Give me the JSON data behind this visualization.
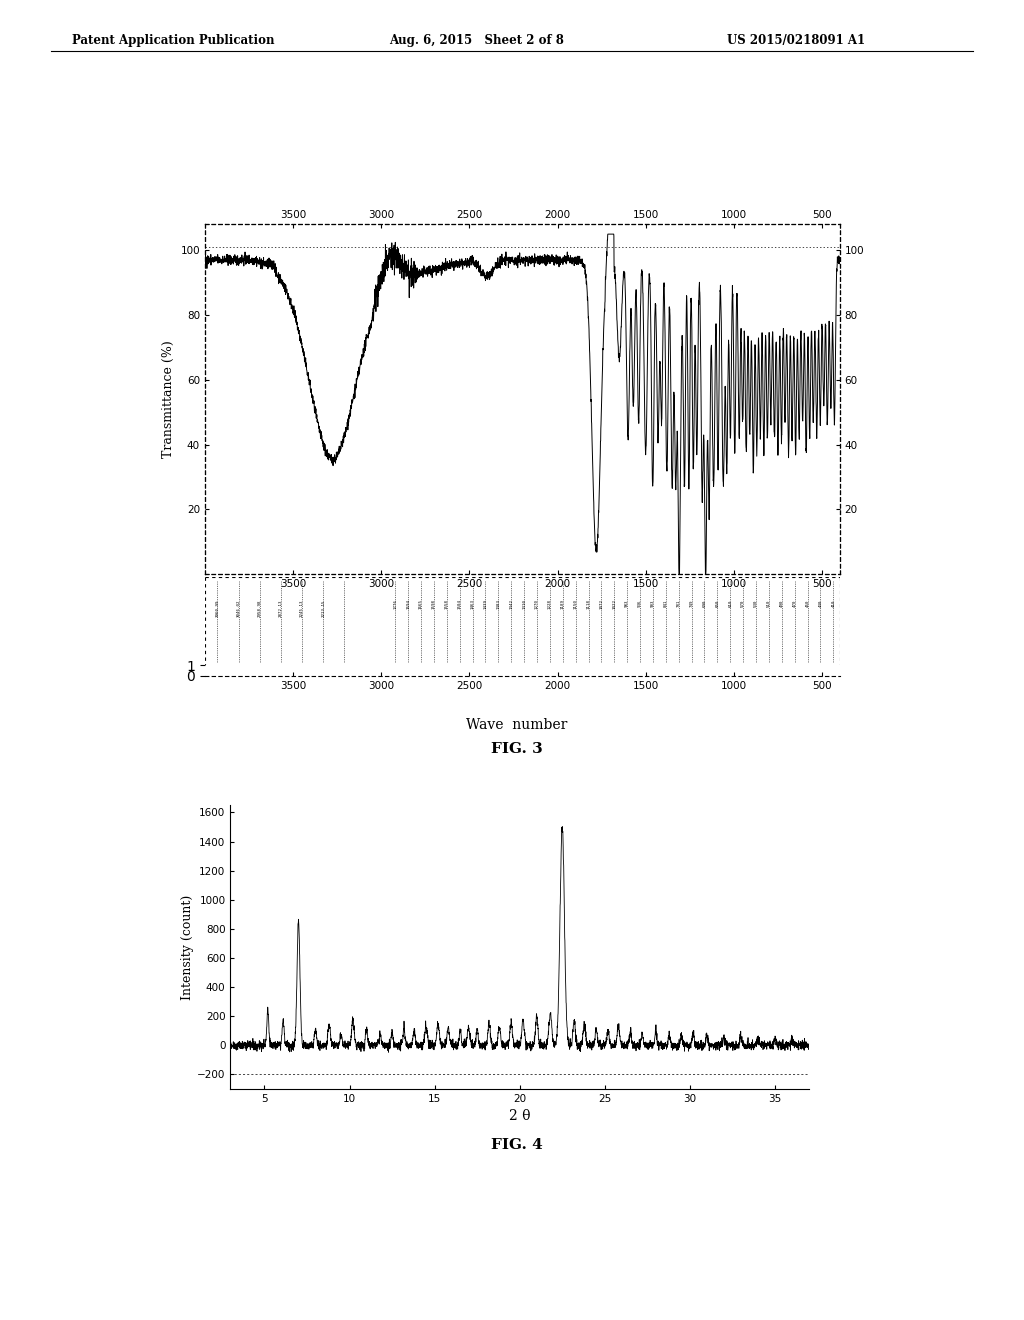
{
  "header_left": "Patent Application Publication",
  "header_center": "Aug. 6, 2015   Sheet 2 of 8",
  "header_right": "US 2015/0218091 A1",
  "fig3_title": "FIG. 3",
  "fig3_xlabel": "Wave  number",
  "fig3_ylabel": "Transmittance (%)",
  "fig3_xticks": [
    3500,
    3000,
    2500,
    2000,
    1500,
    1000,
    500
  ],
  "fig3_yticks": [
    20,
    40,
    60,
    80,
    100
  ],
  "fig3_ylim": [
    0,
    108
  ],
  "fig3_xlim": [
    4000,
    400
  ],
  "fig4_title": "FIG. 4",
  "fig4_xlabel": "2 θ",
  "fig4_ylabel": "Intensity (count)",
  "fig4_xticks": [
    5,
    10,
    15,
    20,
    25,
    30,
    35
  ],
  "fig4_yticks": [
    -200,
    0,
    200,
    400,
    600,
    800,
    1000,
    1200,
    1400,
    1600
  ],
  "fig4_ylim": [
    -300,
    1650
  ],
  "fig4_xlim": [
    3,
    37
  ],
  "background_color": "#ffffff",
  "line_color": "#000000"
}
